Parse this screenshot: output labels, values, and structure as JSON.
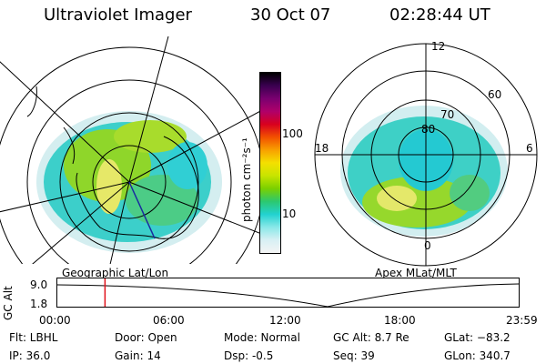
{
  "header": {
    "title": "Ultraviolet Imager",
    "date": "30 Oct 07",
    "time": "02:28:44 UT"
  },
  "left_map": {
    "caption": "Geographic Lat/Lon"
  },
  "right_map": {
    "caption": "Apex MLat/MLT",
    "lat_labels": [
      "80",
      "70",
      "60"
    ],
    "mlt_labels": {
      "top": "12",
      "left": "18",
      "right": "6",
      "bottom": "0"
    }
  },
  "colorbar": {
    "title": "photon cm⁻²s⁻¹",
    "ticks": [
      "100",
      "10"
    ],
    "colors": [
      "#000000",
      "#3a0050",
      "#7a0070",
      "#b0006a",
      "#d8001e",
      "#f25000",
      "#f8a000",
      "#f4e000",
      "#c8e400",
      "#7ad000",
      "#2cc870",
      "#22d2d0",
      "#8ae8e8",
      "#d8f0f4",
      "#f4f4f4"
    ]
  },
  "timeline": {
    "ylabel": "GC Alt",
    "ytick_top": "9.0",
    "ytick_bottom": "1.8",
    "xticks": [
      "00:00",
      "06:00",
      "12:00",
      "18:00",
      "23:59"
    ],
    "marker_time_hours": 2.48
  },
  "info": {
    "flt": "Flt: LBHL",
    "ip": "IP: 36.0",
    "door": "Door: Open",
    "gain": "Gain: 14",
    "mode": "Mode: Normal",
    "dsp": "Dsp:      -0.5",
    "gcalt": "GC Alt: 8.7 Re",
    "seq": "Seq: 39",
    "glat": "GLat: −83.2",
    "glon": "GLon: 340.7"
  }
}
